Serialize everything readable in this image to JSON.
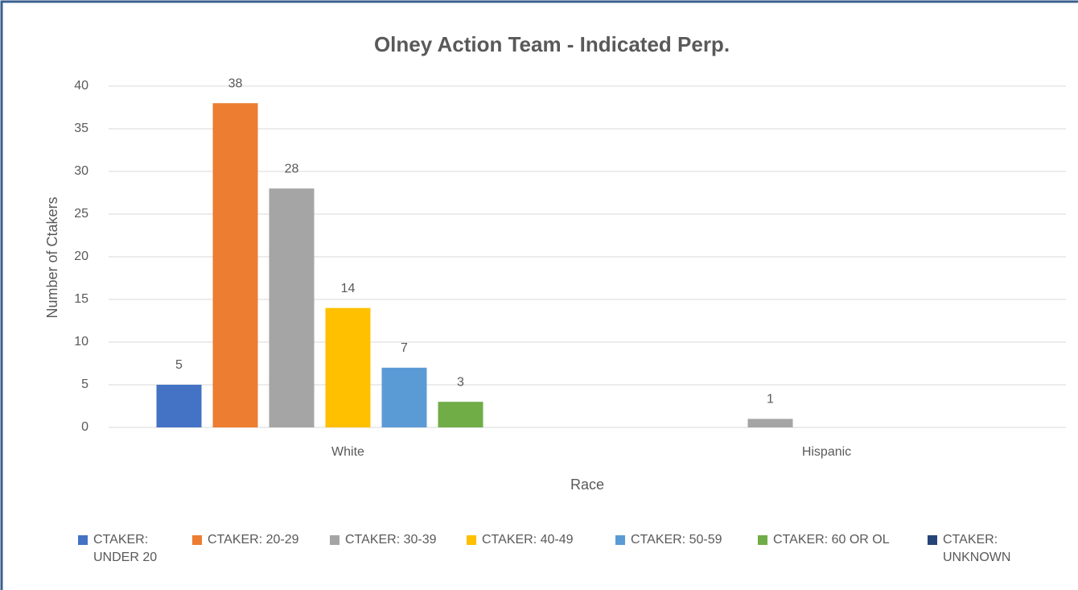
{
  "chart_data": {
    "type": "bar",
    "title": "Olney Action Team - Indicated Perp.",
    "x_label": "Race",
    "y_label": "Number of Ctakers",
    "categories": [
      "White",
      "Hispanic"
    ],
    "series": [
      {
        "name": "CTAKER: UNDER 20",
        "color": "#4472c4",
        "values": [
          5,
          null
        ]
      },
      {
        "name": "CTAKER: 20-29",
        "color": "#ed7d31",
        "values": [
          38,
          null
        ]
      },
      {
        "name": "CTAKER: 30-39",
        "color": "#a5a5a5",
        "values": [
          28,
          1
        ]
      },
      {
        "name": "CTAKER: 40-49",
        "color": "#ffc000",
        "values": [
          14,
          null
        ]
      },
      {
        "name": "CTAKER: 50-59",
        "color": "#5b9bd5",
        "values": [
          7,
          null
        ]
      },
      {
        "name": "CTAKER: 60 OR OL",
        "color": "#70ad47",
        "values": [
          3,
          null
        ]
      },
      {
        "name": "CTAKER: UNKNOWN",
        "color": "#264478",
        "values": [
          null,
          null
        ]
      }
    ],
    "ylim": [
      0,
      40
    ],
    "yticks": [
      0,
      5,
      10,
      15,
      20,
      25,
      30,
      35,
      40
    ],
    "grid": true,
    "legend": "bottom"
  }
}
